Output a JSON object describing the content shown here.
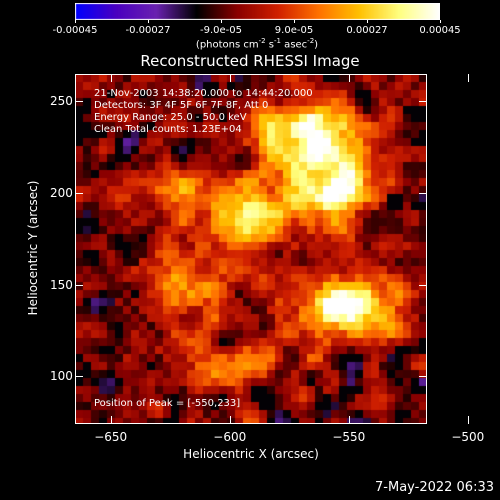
{
  "chart_data": {
    "type": "heatmap",
    "title": "Reconstructed RHESSI Image",
    "xlabel": "Heliocentric X (arcsec)",
    "ylabel": "Heliocentric Y (arcsec)",
    "xlim": [
      -665,
      -518
    ],
    "ylim": [
      75,
      265
    ],
    "x_ticks": [
      -650,
      -600,
      -550,
      -500
    ],
    "y_ticks": [
      100,
      150,
      200,
      250
    ],
    "colorbar": {
      "ticks": [
        "-0.00045",
        "-0.00027",
        "-9.0e-05",
        "9.0e-05",
        "0.00027",
        "0.00045"
      ],
      "tick_values": [
        -0.00045,
        -0.00027,
        -9e-05,
        9e-05,
        0.00027,
        0.00045
      ],
      "unit_main": "(photons cm",
      "unit_exp1": "-2",
      "unit_mid": " s",
      "unit_exp2": "-1",
      "unit_after": " asec",
      "unit_exp3": "-2",
      "unit_close": ")",
      "colors": [
        "#0000ff",
        "#4a00c0",
        "#6a22b0",
        "#000000",
        "#8a0000",
        "#d02000",
        "#ff7000",
        "#ffc000",
        "#ffff80",
        "#ffffff"
      ]
    },
    "annotations": [
      "21-Nov-2003 14:38:20.000 to 14:44:20.000",
      "Detectors: 3F 4F 5F 6F 7F 8F, Att 0",
      "Energy Range: 25.0 - 50.0 keV",
      "Clean     Total counts: 1.23E+04",
      "Position of Peak = [-550,233]"
    ],
    "peak": {
      "x": -550,
      "y": 233
    },
    "sources": [
      {
        "x": -570,
        "y": 233,
        "amp": 1.0,
        "sx": 14,
        "sy": 12
      },
      {
        "x": -555,
        "y": 205,
        "amp": 0.9,
        "sx": 12,
        "sy": 16
      },
      {
        "x": -590,
        "y": 190,
        "amp": 0.8,
        "sx": 15,
        "sy": 12
      },
      {
        "x": -550,
        "y": 140,
        "amp": 1.0,
        "sx": 16,
        "sy": 12
      },
      {
        "x": -620,
        "y": 150,
        "amp": 0.55,
        "sx": 14,
        "sy": 12
      },
      {
        "x": -625,
        "y": 200,
        "amp": 0.45,
        "sx": 12,
        "sy": 12
      },
      {
        "x": -598,
        "y": 110,
        "amp": 0.5,
        "sx": 16,
        "sy": 10
      }
    ]
  },
  "timestamp": "7-May-2022 06:33"
}
